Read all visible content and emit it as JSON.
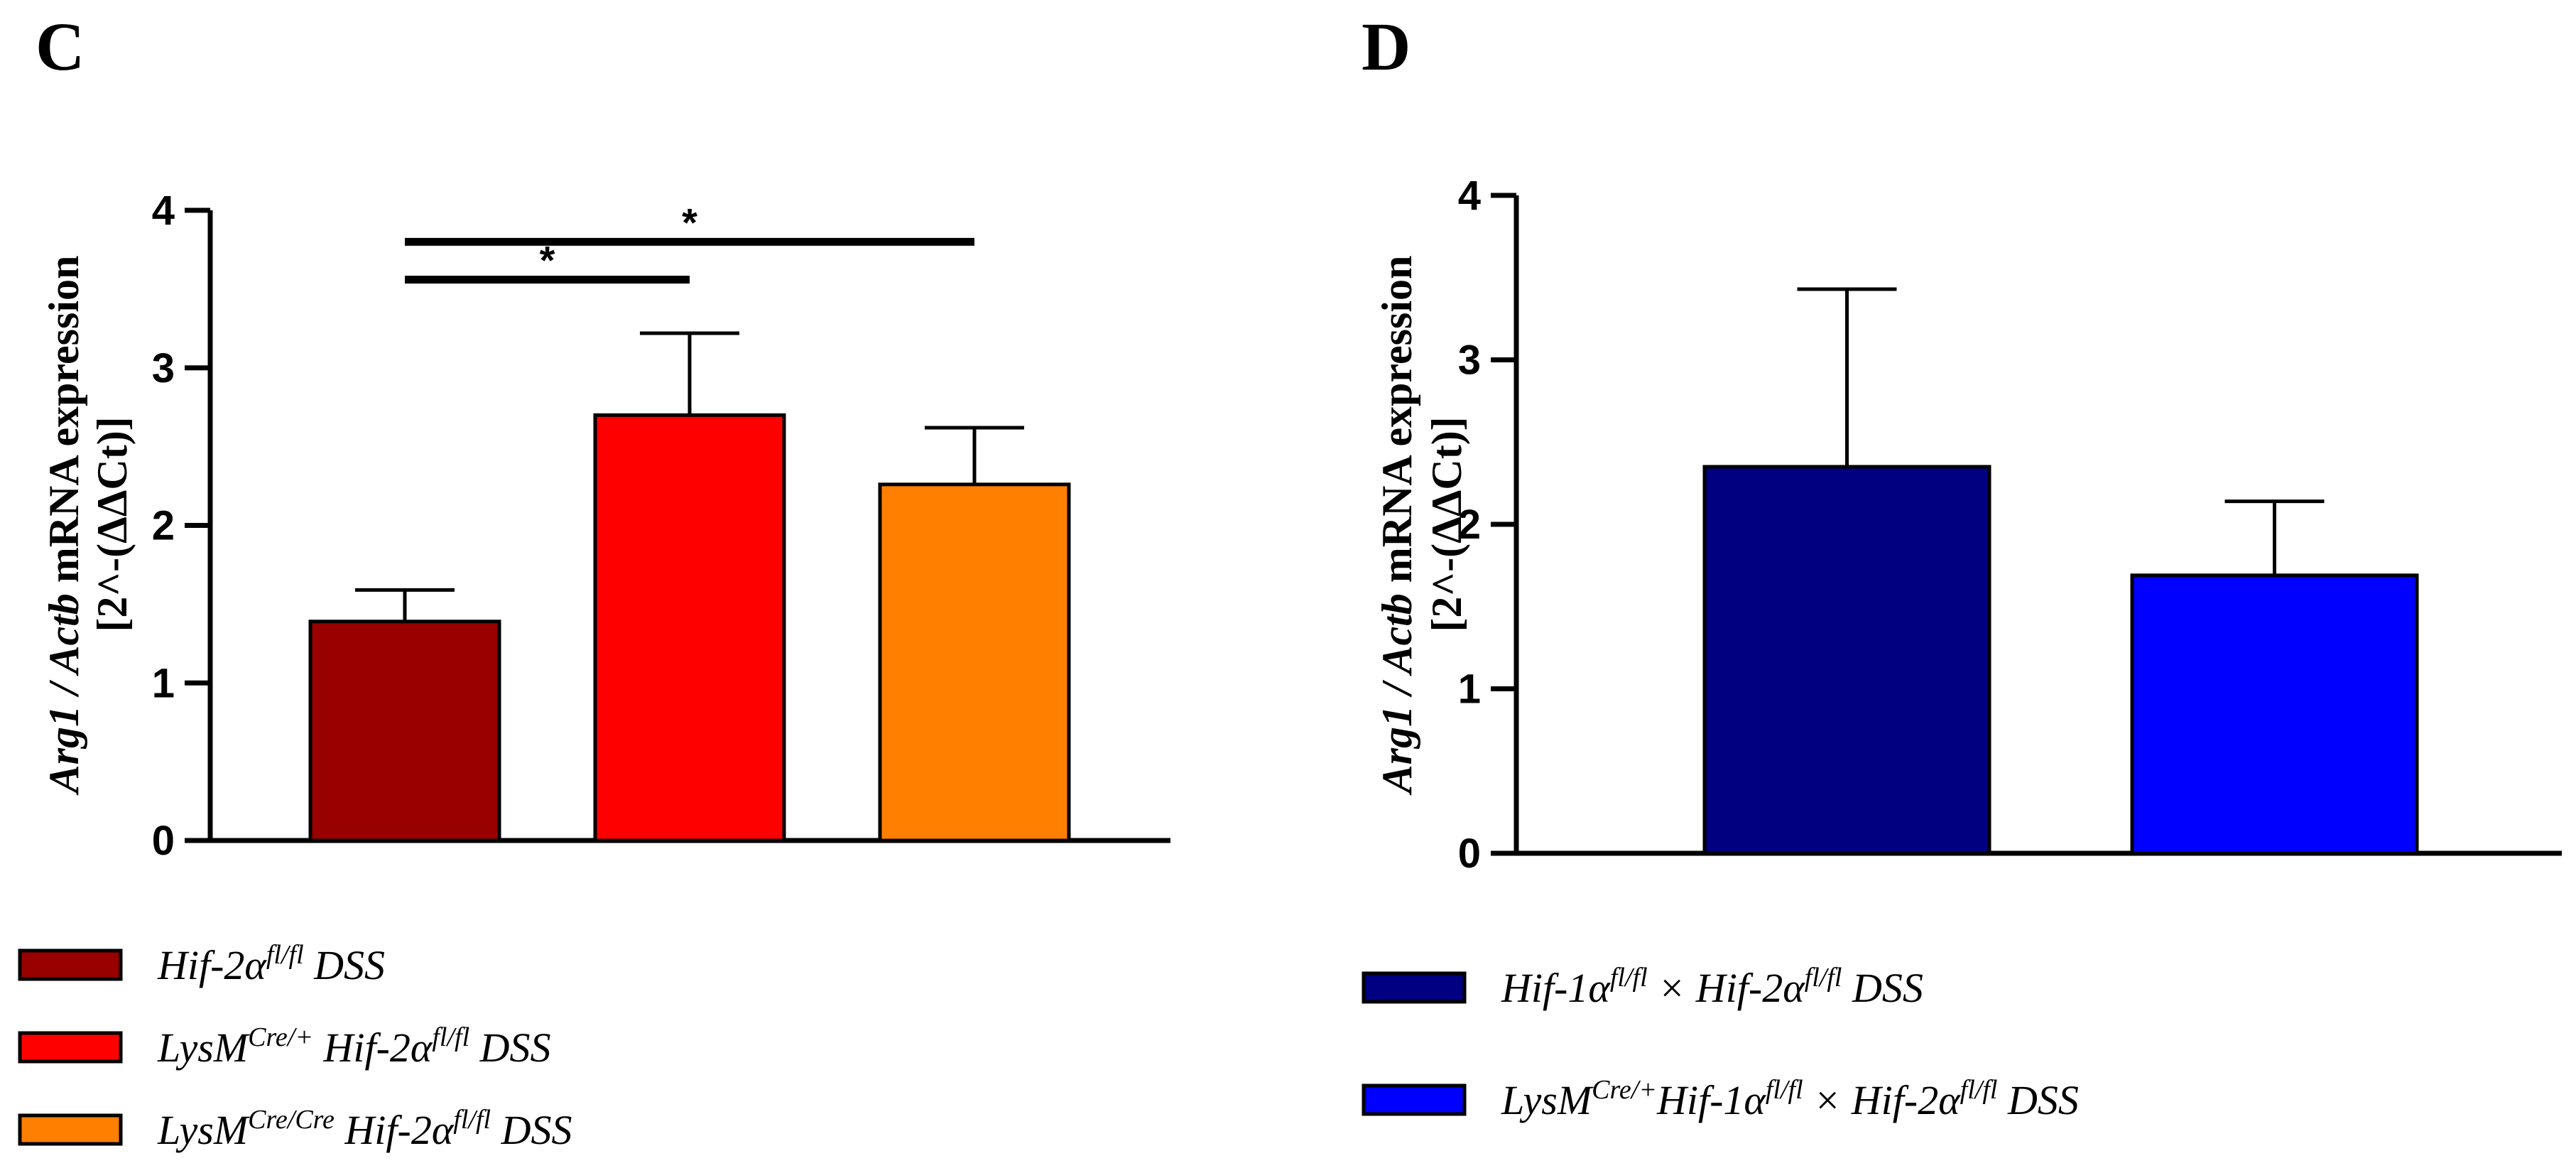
{
  "chart_data": [
    {
      "type": "bar",
      "panel": "C",
      "ylabel_line1_italic": "Arg1 / Actb",
      "ylabel_line1_rest": " mRNA expression",
      "ylabel_line2": "[2^-(ΔΔCt)]",
      "ylim": [
        0,
        4
      ],
      "yticks": [
        "0",
        "1",
        "2",
        "3",
        "4"
      ],
      "categories": [
        "Hif-2α fl/fl DSS",
        "LysM Cre/+ Hif-2α fl/fl DSS",
        "LysM Cre/Cre Hif-2α fl/fl DSS"
      ],
      "values": [
        1.39,
        2.7,
        2.26
      ],
      "errors": [
        0.2,
        0.52,
        0.36
      ],
      "colors": [
        "#990000",
        "#ff0000",
        "#ff8000"
      ],
      "significance": [
        {
          "from": 0,
          "to": 1,
          "label": "*",
          "y": 3.56
        },
        {
          "from": 0,
          "to": 2,
          "label": "*",
          "y": 3.8
        }
      ],
      "legend": [
        {
          "parts": [
            {
              "t": "Hif-2α"
            },
            {
              "t": "fl/fl",
              "sup": true
            },
            {
              "t": " DSS"
            }
          ]
        },
        {
          "parts": [
            {
              "t": "LysM"
            },
            {
              "t": "Cre/+",
              "sup": true
            },
            {
              "t": " Hif-2α"
            },
            {
              "t": "fl/fl",
              "sup": true
            },
            {
              "t": " DSS"
            }
          ]
        },
        {
          "parts": [
            {
              "t": "LysM"
            },
            {
              "t": "Cre/Cre",
              "sup": true
            },
            {
              "t": " Hif-2α"
            },
            {
              "t": "fl/fl",
              "sup": true
            },
            {
              "t": " DSS"
            }
          ]
        }
      ]
    },
    {
      "type": "bar",
      "panel": "D",
      "ylabel_line1_italic": "Arg1 / Actb",
      "ylabel_line1_rest": " mRNA expression",
      "ylabel_line2": "[2^-(ΔΔCt)]",
      "ylim": [
        0,
        4
      ],
      "yticks": [
        "0",
        "1",
        "2",
        "3",
        "4"
      ],
      "categories": [
        "Hif-1α fl/fl × Hif-2α fl/fl DSS",
        "LysM Cre/+ Hif-1α fl/fl × Hif-2α fl/fl DSS"
      ],
      "values": [
        2.35,
        1.69
      ],
      "errors": [
        1.08,
        0.45
      ],
      "colors": [
        "#000080",
        "#0000ff"
      ],
      "significance": [],
      "legend": [
        {
          "parts": [
            {
              "t": "Hif-1α"
            },
            {
              "t": "fl/fl",
              "sup": true
            },
            {
              "t": " × Hif-2α"
            },
            {
              "t": "fl/fl",
              "sup": true
            },
            {
              "t": " DSS"
            }
          ]
        },
        {
          "parts": [
            {
              "t": "LysM"
            },
            {
              "t": "Cre/+",
              "sup": true
            },
            {
              "t": "Hif-1α"
            },
            {
              "t": "fl/fl",
              "sup": true
            },
            {
              "t": " × Hif-2α"
            },
            {
              "t": "fl/fl",
              "sup": true
            },
            {
              "t": " DSS"
            }
          ]
        }
      ]
    }
  ]
}
